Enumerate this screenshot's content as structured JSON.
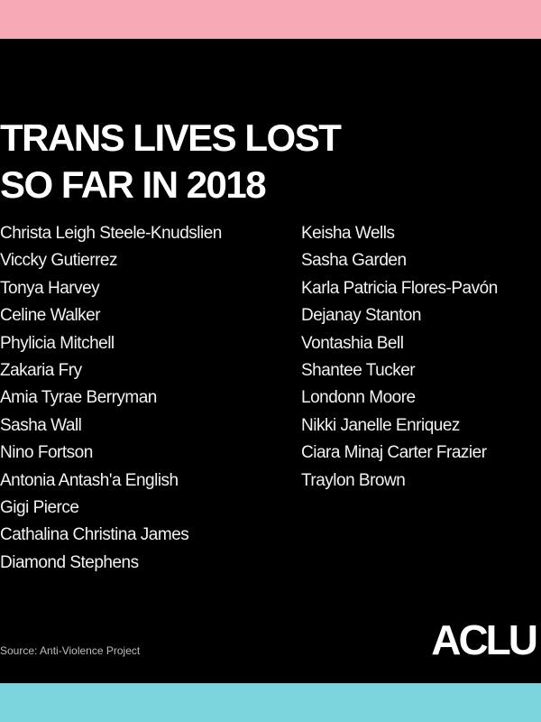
{
  "colors": {
    "top_band": "#f7a9b6",
    "bottom_band": "#7bd3db",
    "background": "#000000",
    "text": "#ffffff"
  },
  "title": {
    "line1": "TRANS LIVES LOST",
    "line2": "SO FAR IN 2018"
  },
  "names_left": [
    "Christa Leigh Steele-Knudslien",
    "Viccky Gutierrez",
    "Tonya Harvey",
    "Celine Walker",
    "Phylicia Mitchell",
    "Zakaria Fry",
    "Amia Tyrae Berryman",
    "Sasha Wall",
    "Nino Fortson",
    "Antonia Antash'a English",
    "Gigi Pierce",
    "Cathalina Christina James",
    "Diamond Stephens"
  ],
  "names_right": [
    "Keisha Wells",
    "Sasha Garden",
    "Karla Patricia Flores-Pavón",
    "Dejanay Stanton",
    "Vontashia Bell",
    "Shantee Tucker",
    "Londonn Moore",
    "Nikki Janelle Enriquez",
    "Ciara Minaj Carter Frazier",
    "Traylon Brown"
  ],
  "source": "Source: Anti-Violence Project",
  "logo": "ACLU"
}
